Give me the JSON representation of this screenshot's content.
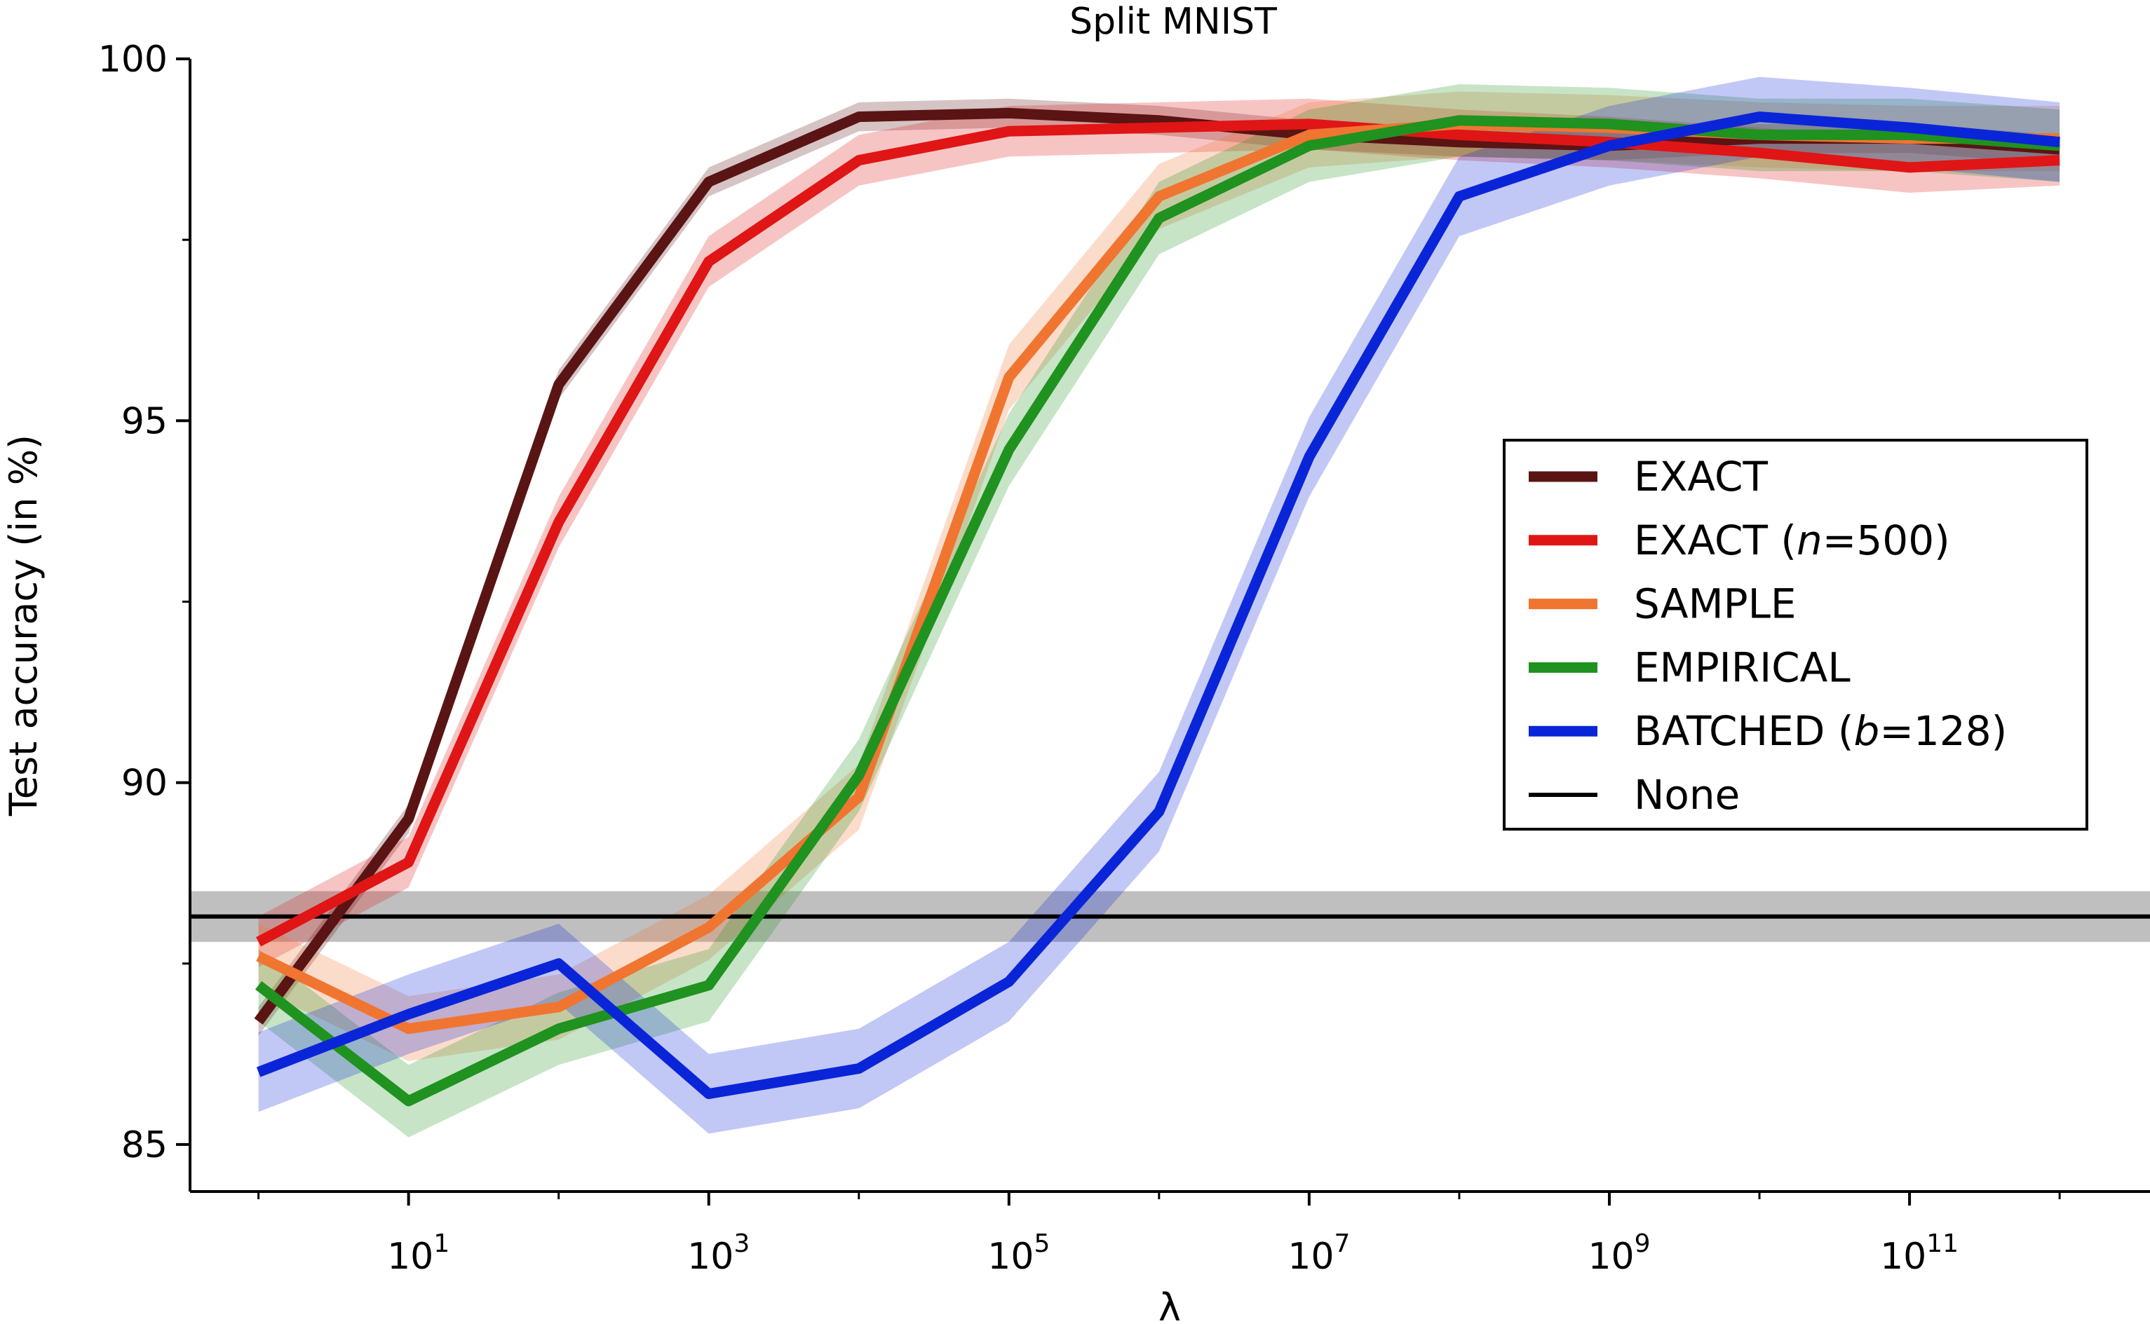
{
  "chart_data": {
    "type": "line",
    "title": "Split MNIST",
    "xlabel": "λ",
    "ylabel": "Test accuracy (in %)",
    "xscale": "log",
    "xlim": [
      0.35,
      4000000000000.0
    ],
    "ylim": [
      84.35,
      100.0
    ],
    "x": [
      1,
      10,
      100,
      1000,
      10000,
      100000,
      1000000,
      10000000,
      100000000,
      1000000000,
      10000000000,
      100000000000,
      1000000000000
    ],
    "xticks": [
      {
        "value": 10,
        "base": "10",
        "exp": "1"
      },
      {
        "value": 1000,
        "base": "10",
        "exp": "3"
      },
      {
        "value": 100000,
        "base": "10",
        "exp": "5"
      },
      {
        "value": 10000000,
        "base": "10",
        "exp": "7"
      },
      {
        "value": 1000000000,
        "base": "10",
        "exp": "9"
      },
      {
        "value": 100000000000,
        "base": "10",
        "exp": "11"
      }
    ],
    "yticks": [
      85,
      90,
      95,
      100
    ],
    "legend_position": "center-right",
    "series": [
      {
        "key": "exact",
        "name": "EXACT",
        "color": "#5a1414",
        "values": [
          86.7,
          89.5,
          95.5,
          98.3,
          99.2,
          99.25,
          99.15,
          98.95,
          98.85,
          98.8,
          98.9,
          98.9,
          98.75
        ],
        "band": 0.2
      },
      {
        "key": "exact500",
        "name_prefix": "EXACT (",
        "name_italic": "n",
        "name_suffix": "=500)",
        "color": "#e01515",
        "values": [
          87.8,
          88.9,
          93.6,
          97.2,
          98.6,
          99.0,
          99.05,
          99.1,
          98.95,
          98.85,
          98.7,
          98.5,
          98.6
        ],
        "band": 0.35
      },
      {
        "key": "sample",
        "name": "SAMPLE",
        "color": "#f07530",
        "values": [
          87.6,
          86.6,
          86.9,
          88.0,
          89.8,
          95.6,
          98.1,
          98.95,
          99.1,
          99.05,
          98.95,
          98.9,
          98.9
        ],
        "band": 0.45
      },
      {
        "key": "empirical",
        "name": "EMPIRICAL",
        "color": "#1f921f",
        "values": [
          87.2,
          85.6,
          86.6,
          87.2,
          90.1,
          94.6,
          97.8,
          98.8,
          99.15,
          99.1,
          98.95,
          98.95,
          98.8
        ],
        "band": 0.5
      },
      {
        "key": "batched",
        "name_prefix": "BATCHED (",
        "name_italic": "b",
        "name_suffix": "=128)",
        "color": "#0a25d8",
        "values": [
          86.0,
          86.8,
          87.5,
          85.7,
          86.05,
          87.25,
          89.6,
          94.5,
          98.1,
          98.8,
          99.2,
          99.05,
          98.85
        ],
        "band": 0.55
      }
    ],
    "baseline": {
      "key": "none",
      "name": "None",
      "color": "#000000",
      "value": 88.15,
      "band_low": 87.8,
      "band_high": 88.5
    }
  }
}
